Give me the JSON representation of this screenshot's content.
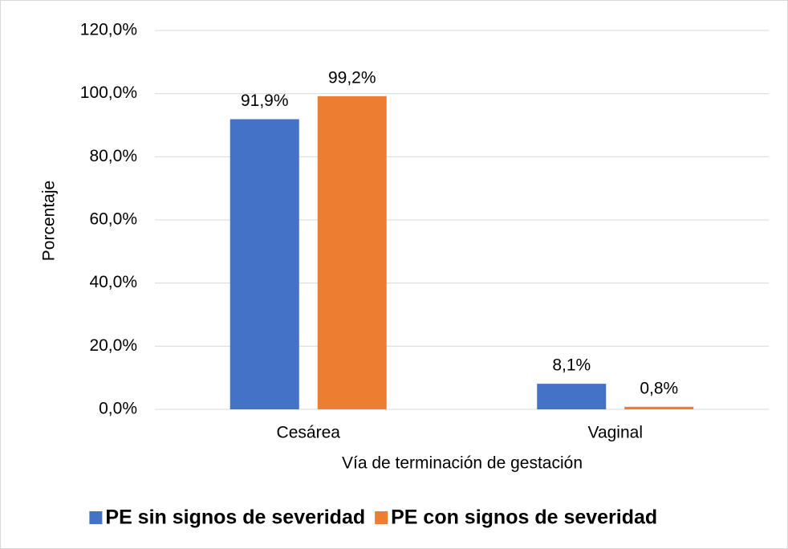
{
  "chart_data": {
    "type": "bar",
    "xlabel": "Vía de terminación de gestación",
    "ylabel": "Porcentaje",
    "categories": [
      "Cesárea",
      "Vaginal"
    ],
    "series": [
      {
        "name": "PE sin signos de severidad",
        "color": "#4472c4",
        "values": [
          91.9,
          8.1
        ],
        "value_labels": [
          "91,9%",
          "8,1%"
        ]
      },
      {
        "name": "PE con signos de severidad",
        "color": "#ed7d31",
        "values": [
          99.2,
          0.8
        ],
        "value_labels": [
          "99,2%",
          "0,8%"
        ]
      }
    ],
    "ylim": [
      0,
      120
    ],
    "yticks": [
      {
        "value": 0,
        "label": "0,0%"
      },
      {
        "value": 20,
        "label": "20,0%"
      },
      {
        "value": 40,
        "label": "40,0%"
      },
      {
        "value": 60,
        "label": "60,0%"
      },
      {
        "value": 80,
        "label": "80,0%"
      },
      {
        "value": 100,
        "label": "100,0%"
      },
      {
        "value": 120,
        "label": "120,0%"
      }
    ],
    "grid": true,
    "legend": "bottom"
  }
}
